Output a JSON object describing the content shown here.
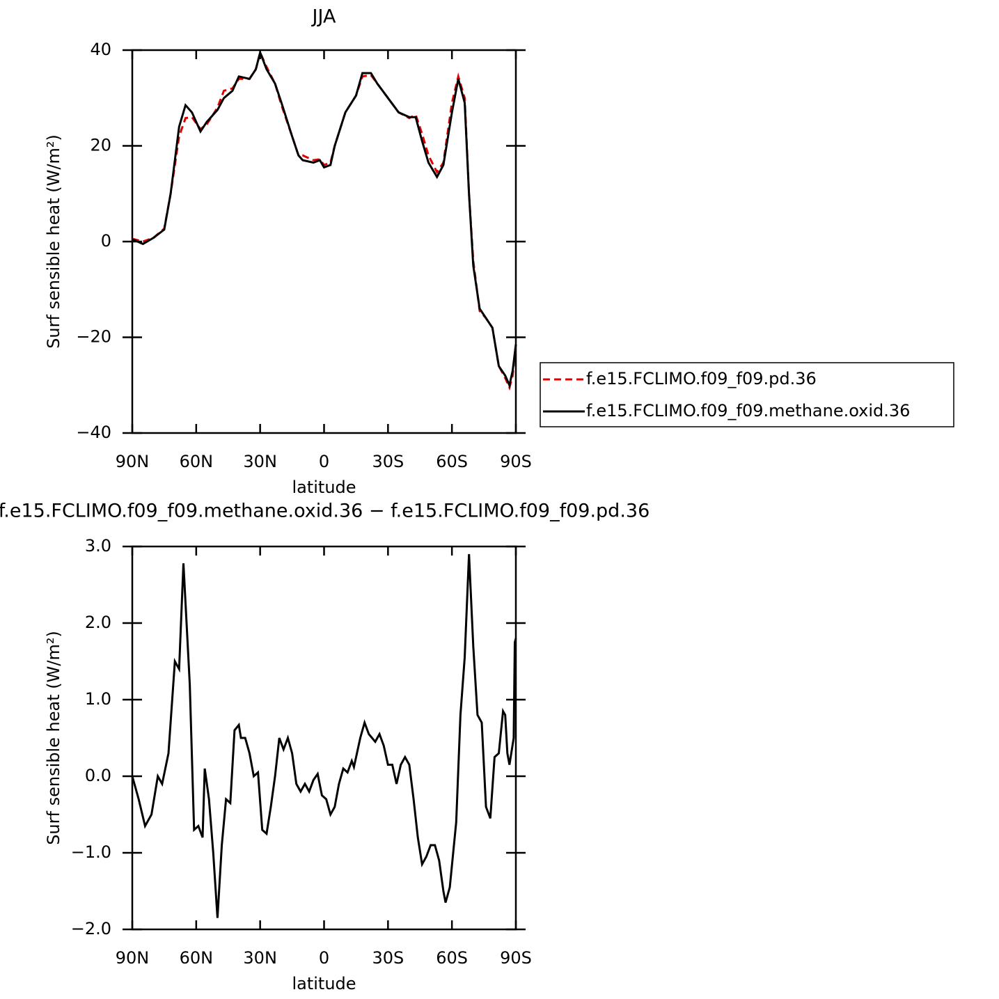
{
  "chart_data": [
    {
      "type": "line",
      "title": "JJA",
      "x_label": "latitude",
      "y_label": "Surf sensible heat (W/m²)",
      "xlim": [
        90,
        -90
      ],
      "xticks": [
        {
          "value": 90,
          "label": "90N"
        },
        {
          "value": 60,
          "label": "60N"
        },
        {
          "value": 30,
          "label": "30N"
        },
        0,
        {
          "value": -30,
          "label": "30S"
        },
        {
          "value": -60,
          "label": "60S"
        },
        {
          "value": -90,
          "label": "90S"
        }
      ],
      "ylim": [
        -40,
        40
      ],
      "yticks": [
        {
          "value": -40,
          "label": "−40"
        },
        {
          "value": -20,
          "label": "−20"
        },
        0,
        20,
        40
      ],
      "legend": "right",
      "x": [
        90,
        85,
        80,
        75,
        72,
        68,
        65,
        62,
        58,
        55,
        50,
        47,
        43,
        40,
        35,
        32,
        30,
        27,
        23,
        20,
        15,
        12,
        10,
        5,
        2,
        0,
        -3,
        -5,
        -10,
        -15,
        -18,
        -22,
        -25,
        -30,
        -35,
        -40,
        -43,
        -46,
        -49,
        -53,
        -56,
        -60,
        -63,
        -66,
        -68,
        -70,
        -73,
        -76,
        -79,
        -82,
        -85,
        -87,
        -88.5,
        -90
      ],
      "series": [
        {
          "name": "f.e15.FCLIMO.f09_f09.pd.36",
          "color": "#e00000",
          "linestyle": "dashed",
          "values": [
            0.6,
            0,
            0.8,
            2.7,
            10,
            22,
            25.8,
            26,
            23.5,
            24.5,
            28,
            31.5,
            32,
            34,
            34,
            36,
            39.5,
            36.5,
            33,
            28.5,
            22,
            18,
            18,
            17,
            17.2,
            16,
            16.5,
            20,
            27,
            30.5,
            34.5,
            34.8,
            33,
            30,
            27,
            25.8,
            26.5,
            22.5,
            18,
            14.5,
            16.5,
            29,
            34.5,
            30,
            10,
            -4,
            -14.5,
            -16,
            -18,
            -26,
            -28.5,
            -30.5,
            -28,
            -21.5
          ]
        },
        {
          "name": "f.e15.FCLIMO.f09_f09.methane.oxid.36",
          "color": "#000000",
          "linestyle": "solid",
          "values": [
            0.5,
            -0.5,
            0.8,
            2.5,
            10,
            24,
            28.5,
            27,
            23,
            25,
            27.5,
            30,
            31.5,
            34.5,
            34,
            36,
            39.5,
            36,
            33,
            29,
            22,
            18,
            17,
            16.5,
            17,
            15.5,
            16,
            20,
            27,
            30.5,
            35.2,
            35.2,
            33,
            30,
            27,
            26,
            26,
            21,
            16.5,
            13.5,
            16,
            27,
            34,
            29,
            10,
            -5,
            -14,
            -16,
            -18,
            -26,
            -28,
            -30,
            -27,
            -21.5
          ]
        }
      ]
    },
    {
      "type": "line",
      "title": "f.e15.FCLIMO.f09_f09.methane.oxid.36 − f.e15.FCLIMO.f09_f09.pd.36",
      "x_label": "latitude",
      "y_label": "Surf sensible heat (W/m²)",
      "xlim": [
        90,
        -90
      ],
      "xticks": [
        {
          "value": 90,
          "label": "90N"
        },
        {
          "value": 60,
          "label": "60N"
        },
        {
          "value": 30,
          "label": "30N"
        },
        0,
        {
          "value": -30,
          "label": "30S"
        },
        {
          "value": -60,
          "label": "60S"
        },
        {
          "value": -90,
          "label": "90S"
        }
      ],
      "ylim": [
        -2,
        3
      ],
      "yticks": [
        {
          "value": -2,
          "label": "−2.0"
        },
        {
          "value": -1,
          "label": "−1.0"
        },
        {
          "value": 0,
          "label": "0.0"
        },
        {
          "value": 1,
          "label": "1.0"
        },
        {
          "value": 2,
          "label": "2.0"
        },
        {
          "value": 3,
          "label": "3.0"
        }
      ],
      "x": [
        90,
        87,
        84,
        81,
        78,
        76,
        73,
        70,
        68,
        66,
        63,
        61,
        59,
        57,
        56,
        54,
        52,
        50,
        48,
        46,
        44,
        42,
        40,
        39,
        37,
        35,
        33,
        31,
        29,
        27,
        25,
        23,
        21,
        19,
        17,
        15,
        13,
        11,
        9,
        7,
        5,
        3,
        1,
        -1,
        -3,
        -5,
        -7,
        -9,
        -11,
        -13,
        -14,
        -17,
        -19,
        -21,
        -24,
        -26,
        -28,
        -30,
        -32,
        -34,
        -36,
        -38,
        -40,
        -42,
        -44,
        -46,
        -48,
        -50,
        -52,
        -54,
        -56,
        -57,
        -59,
        -62,
        -64,
        -66,
        -68,
        -70,
        -72,
        -74,
        -76,
        -78,
        -80,
        -82,
        -84,
        -85,
        -86,
        -87,
        -89,
        -89.5,
        -90
      ],
      "series": [
        {
          "color": "#000000",
          "linestyle": "solid",
          "values": [
            0,
            -0.3,
            -0.65,
            -0.5,
            0,
            -0.1,
            0.3,
            1.5,
            1.4,
            2.78,
            1.2,
            -0.7,
            -0.65,
            -0.8,
            0.1,
            -0.3,
            -1,
            -1.85,
            -0.9,
            -0.3,
            -0.35,
            0.6,
            0.67,
            0.5,
            0.5,
            0.3,
            0,
            0.05,
            -0.7,
            -0.75,
            -0.4,
            0,
            0.5,
            0.35,
            0.5,
            0.3,
            -0.1,
            -0.2,
            -0.1,
            -0.2,
            -0.05,
            0.03,
            -0.25,
            -0.3,
            -0.5,
            -0.4,
            -0.1,
            0.1,
            0.05,
            0.2,
            0.12,
            0.5,
            0.7,
            0.55,
            0.45,
            0.55,
            0.4,
            0.15,
            0.15,
            -0.1,
            0.15,
            0.25,
            0.15,
            -0.3,
            -0.8,
            -1.15,
            -1.05,
            -0.9,
            -0.9,
            -1.1,
            -1.5,
            -1.65,
            -1.45,
            -0.6,
            0.8,
            1.55,
            2.9,
            1.7,
            0.8,
            0.7,
            -0.4,
            -0.55,
            0.25,
            0.3,
            0.85,
            0.8,
            0.3,
            0.15,
            0.5,
            1.75,
            1.8
          ]
        }
      ]
    }
  ]
}
